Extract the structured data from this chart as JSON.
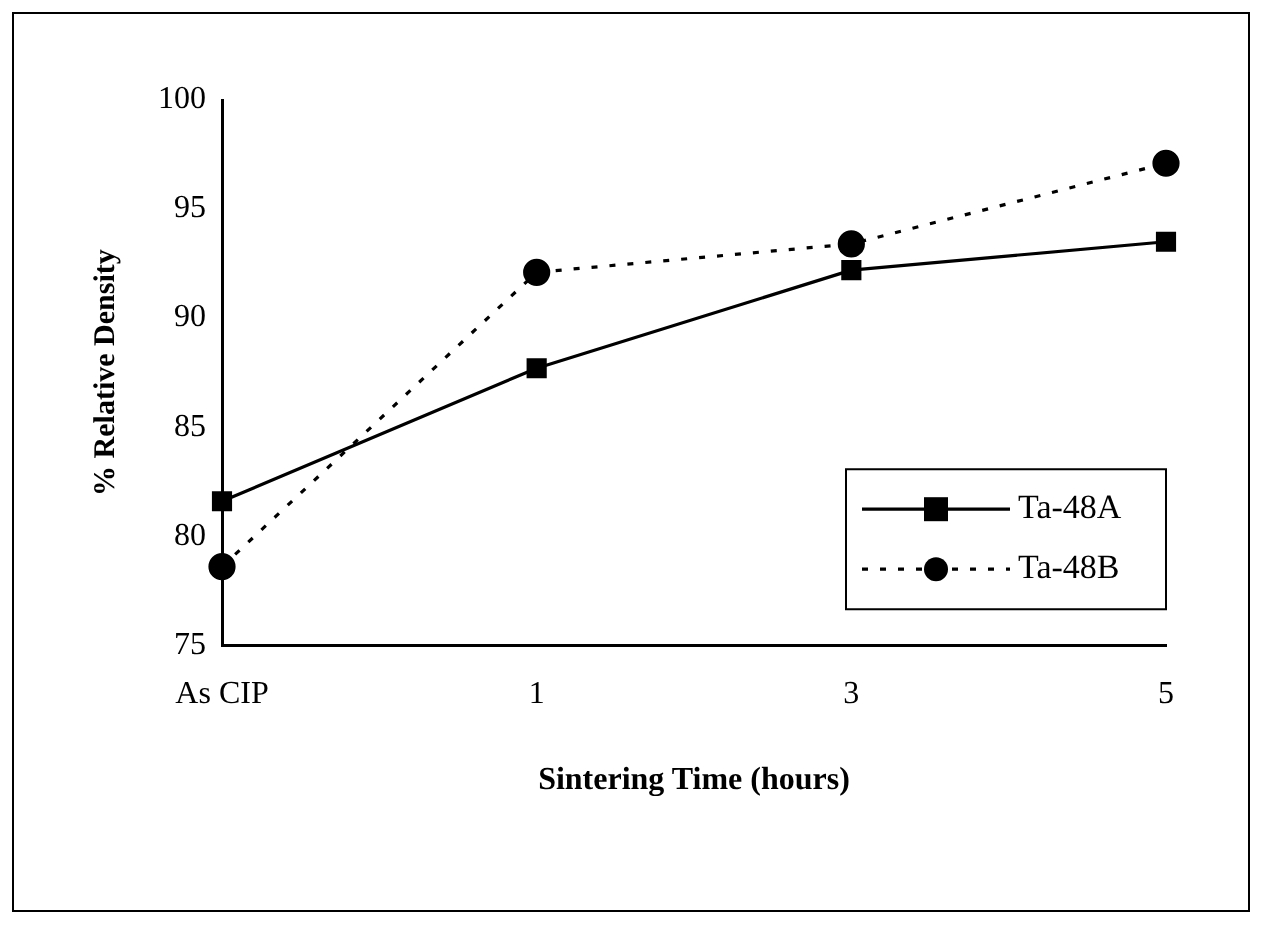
{
  "chart_data": {
    "type": "line",
    "xlabel": "Sintering Time (hours)",
    "ylabel": "% Relative Density",
    "categories": [
      "As CIP",
      "1",
      "3",
      "5"
    ],
    "series": [
      {
        "name": "Ta-48A",
        "color": "#000000",
        "values": [
          81.6,
          87.7,
          92.2,
          93.5
        ],
        "marker": "square",
        "line_style": "solid"
      },
      {
        "name": "Ta-48B",
        "color": "#000000",
        "values": [
          78.6,
          92.1,
          93.4,
          97.1
        ],
        "marker": "circle",
        "line_style": "dotted"
      }
    ],
    "ylim": [
      75,
      100
    ],
    "yticks": [
      75,
      80,
      85,
      90,
      95,
      100
    ],
    "grid": false,
    "legend": "bottom right"
  }
}
